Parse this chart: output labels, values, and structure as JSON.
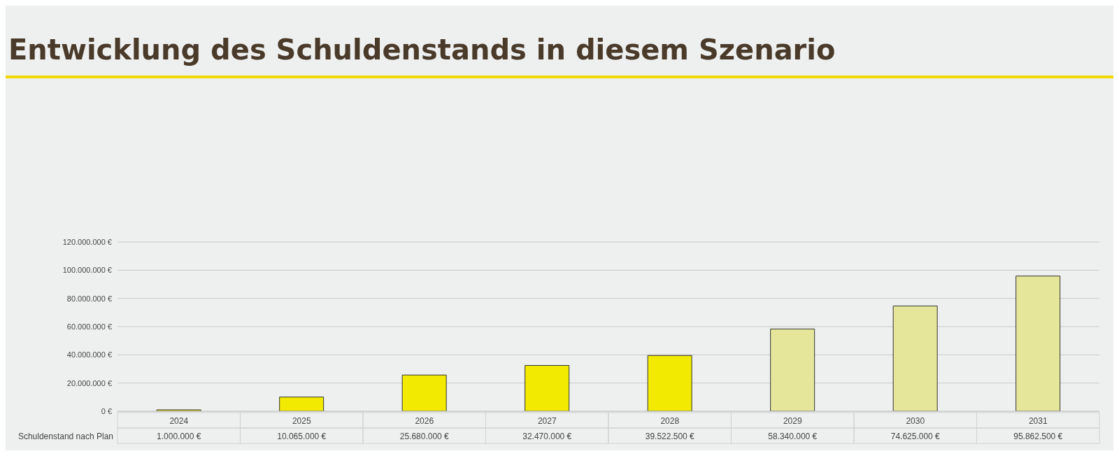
{
  "chart_data": {
    "type": "bar",
    "title": "Entwicklung des Schuldenstands in diesem Szenario",
    "categories": [
      "2024",
      "2025",
      "2026",
      "2027",
      "2028",
      "2029",
      "2030",
      "2031"
    ],
    "series": [
      {
        "name": "Schuldenstand nach Plan",
        "colors": [
          "#f2ea00",
          "#f2ea00",
          "#f2ea00",
          "#f2ea00",
          "#f2ea00",
          "#e6e69a",
          "#e6e69a",
          "#e6e69a"
        ],
        "values": [
          1000000,
          10065000,
          25680000,
          32470000,
          39522500,
          58340000,
          74625000,
          95862500
        ],
        "value_labels": [
          "1.000.000 €",
          "10.065.000 €",
          "25.680.000 €",
          "32.470.000 €",
          "39.522.500 €",
          "58.340.000 €",
          "74.625.000 €",
          "95.862.500 €"
        ]
      }
    ],
    "ylim": [
      0,
      120000000
    ],
    "yticks": [
      {
        "value": 0,
        "label": "0 €"
      },
      {
        "value": 20000000,
        "label": "20.000.000 €"
      },
      {
        "value": 40000000,
        "label": "40.000.000 €"
      },
      {
        "value": 60000000,
        "label": "60.000.000 €"
      },
      {
        "value": 80000000,
        "label": "80.000.000 €"
      },
      {
        "value": 100000000,
        "label": "100.000.000 €"
      },
      {
        "value": 120000000,
        "label": "120.000.000 €"
      }
    ],
    "grid": "y",
    "legend": false
  }
}
